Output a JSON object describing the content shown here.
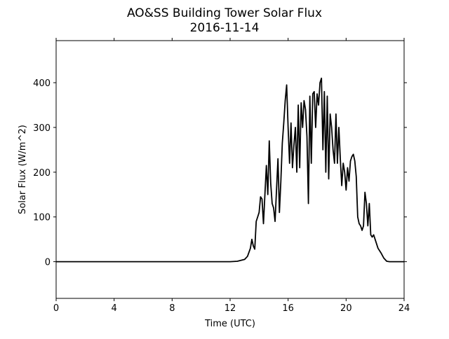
{
  "chart_data": {
    "type": "line",
    "title": "AO&SS Building Tower Solar Flux",
    "subtitle": "2016-11-14",
    "x_label": "Time (UTC)",
    "y_label": "Solar Flux (W/m^2)",
    "xlim": [
      0,
      24
    ],
    "xticks": [
      0,
      4,
      8,
      12,
      16,
      20,
      24
    ],
    "ylim": [
      -82,
      494
    ],
    "yticks": [
      0,
      100,
      200,
      300,
      400
    ],
    "series": [
      {
        "color": "#000000",
        "x": [
          0,
          12,
          12.5,
          13,
          13.2,
          13.4,
          13.5,
          13.6,
          13.7,
          13.8,
          13.9,
          14.0,
          14.1,
          14.2,
          14.3,
          14.4,
          14.5,
          14.6,
          14.7,
          14.8,
          14.9,
          15.0,
          15.1,
          15.2,
          15.3,
          15.4,
          15.5,
          15.6,
          15.7,
          15.8,
          15.9,
          16.0,
          16.1,
          16.2,
          16.3,
          16.4,
          16.5,
          16.6,
          16.7,
          16.8,
          16.9,
          17.0,
          17.1,
          17.2,
          17.3,
          17.4,
          17.5,
          17.6,
          17.7,
          17.8,
          17.9,
          18.0,
          18.1,
          18.2,
          18.3,
          18.4,
          18.5,
          18.6,
          18.7,
          18.8,
          18.9,
          19.0,
          19.1,
          19.2,
          19.3,
          19.4,
          19.5,
          19.6,
          19.7,
          19.8,
          19.9,
          20.0,
          20.1,
          20.2,
          20.3,
          20.4,
          20.5,
          20.6,
          20.7,
          20.8,
          20.9,
          21.0,
          21.1,
          21.2,
          21.3,
          21.4,
          21.5,
          21.6,
          21.7,
          21.8,
          21.9,
          22.0,
          22.2,
          22.4,
          22.6,
          22.8,
          23,
          24
        ],
        "values": [
          0,
          0,
          1,
          5,
          12,
          30,
          50,
          35,
          28,
          90,
          100,
          110,
          145,
          140,
          85,
          150,
          215,
          150,
          270,
          175,
          130,
          120,
          90,
          160,
          230,
          110,
          180,
          265,
          310,
          360,
          395,
          300,
          220,
          310,
          210,
          260,
          300,
          200,
          350,
          210,
          355,
          300,
          360,
          340,
          280,
          130,
          370,
          220,
          375,
          380,
          300,
          375,
          350,
          400,
          410,
          250,
          380,
          200,
          370,
          185,
          330,
          300,
          250,
          220,
          330,
          220,
          300,
          230,
          170,
          220,
          200,
          160,
          210,
          180,
          225,
          235,
          240,
          225,
          190,
          100,
          85,
          80,
          70,
          80,
          155,
          130,
          80,
          130,
          60,
          55,
          60,
          50,
          30,
          20,
          8,
          1,
          0,
          0
        ]
      }
    ]
  }
}
